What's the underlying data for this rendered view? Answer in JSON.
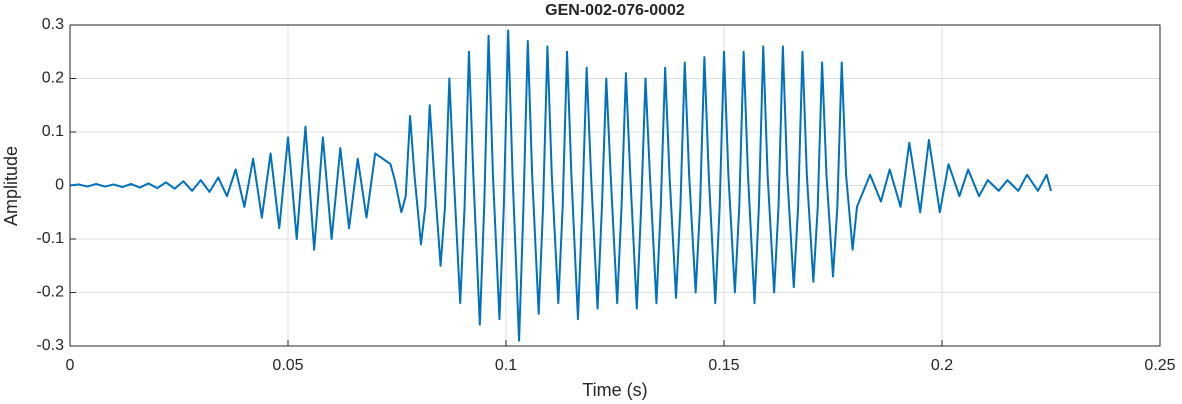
{
  "chart_data": {
    "type": "line",
    "title": "GEN-002-076-0002",
    "xlabel": "Time (s)",
    "ylabel": "Amplitude",
    "color": "#0072bd",
    "grid": true,
    "xlim": [
      0,
      0.25
    ],
    "xticks": [
      0,
      0.05,
      0.1,
      0.15,
      0.2,
      0.25
    ],
    "ylim": [
      -0.3,
      0.3
    ],
    "yticks": [
      -0.3,
      -0.2,
      -0.1,
      0,
      0.1,
      0.2,
      0.3
    ],
    "x": [
      0,
      0.002,
      0.004,
      0.006,
      0.008,
      0.01,
      0.012,
      0.014,
      0.016,
      0.018,
      0.02,
      0.022,
      0.024,
      0.026,
      0.028,
      0.03,
      0.032,
      0.034,
      0.036,
      0.038,
      0.04,
      0.042,
      0.044,
      0.046,
      0.048,
      0.05,
      0.052,
      0.054,
      0.056,
      0.058,
      0.06,
      0.062,
      0.064,
      0.066,
      0.068,
      0.07,
      0.0735,
      0.0745,
      0.076,
      0.077,
      0.078,
      0.079,
      0.0805,
      0.0815,
      0.0825,
      0.0835,
      0.085,
      0.086,
      0.087,
      0.088,
      0.0895,
      0.0905,
      0.0915,
      0.0925,
      0.094,
      0.095,
      0.096,
      0.097,
      0.0985,
      0.0995,
      0.1005,
      0.1015,
      0.103,
      0.104,
      0.105,
      0.106,
      0.1075,
      0.1085,
      0.1095,
      0.1105,
      0.112,
      0.113,
      0.114,
      0.115,
      0.1165,
      0.1175,
      0.1185,
      0.1195,
      0.121,
      0.122,
      0.123,
      0.124,
      0.1255,
      0.1265,
      0.1275,
      0.1285,
      0.13,
      0.131,
      0.132,
      0.133,
      0.1345,
      0.1355,
      0.1365,
      0.1375,
      0.139,
      0.14,
      0.141,
      0.142,
      0.1435,
      0.1445,
      0.1455,
      0.1465,
      0.148,
      0.149,
      0.15,
      0.151,
      0.1525,
      0.1535,
      0.1545,
      0.1555,
      0.157,
      0.158,
      0.159,
      0.16,
      0.1615,
      0.1625,
      0.1635,
      0.1645,
      0.166,
      0.167,
      0.168,
      0.169,
      0.1705,
      0.1715,
      0.1725,
      0.1735,
      0.175,
      0.176,
      0.177,
      0.178,
      0.1795,
      0.1805,
      0.181,
      0.1835,
      0.186,
      0.188,
      0.1905,
      0.1925,
      0.195,
      0.197,
      0.1995,
      0.2015,
      0.204,
      0.206,
      0.2085,
      0.2105,
      0.213,
      0.215,
      0.2175,
      0.2195,
      0.222,
      0.224,
      0.225
    ],
    "values": [
      0,
      0.002,
      -0.002,
      0.003,
      -0.002,
      0.002,
      -0.003,
      0.003,
      -0.004,
      0.004,
      -0.005,
      0.006,
      -0.006,
      0.008,
      -0.01,
      0.01,
      -0.012,
      0.015,
      -0.02,
      0.03,
      -0.04,
      0.05,
      -0.06,
      0.06,
      -0.08,
      0.09,
      -0.1,
      0.11,
      -0.12,
      0.09,
      -0.1,
      0.07,
      -0.08,
      0.05,
      -0.06,
      0.06,
      0.04,
      0.01,
      -0.05,
      -0.02,
      0.13,
      0.02,
      -0.11,
      -0.04,
      0.15,
      0.02,
      -0.15,
      -0.04,
      0.2,
      0.02,
      -0.22,
      -0.04,
      0.25,
      0.02,
      -0.26,
      -0.04,
      0.28,
      0.02,
      -0.25,
      -0.04,
      0.29,
      0.02,
      -0.29,
      -0.04,
      0.27,
      0.02,
      -0.24,
      -0.04,
      0.26,
      0.02,
      -0.22,
      -0.04,
      0.25,
      0.02,
      -0.25,
      -0.04,
      0.22,
      0.02,
      -0.23,
      -0.04,
      0.2,
      0.02,
      -0.22,
      -0.04,
      0.21,
      0.02,
      -0.23,
      -0.04,
      0.2,
      0.02,
      -0.22,
      -0.04,
      0.22,
      0.02,
      -0.21,
      -0.04,
      0.23,
      0.02,
      -0.2,
      -0.04,
      0.24,
      0.02,
      -0.22,
      -0.04,
      0.25,
      0.02,
      -0.2,
      -0.04,
      0.25,
      0.02,
      -0.22,
      -0.04,
      0.26,
      0.02,
      -0.2,
      -0.04,
      0.26,
      0.02,
      -0.19,
      -0.04,
      0.25,
      0.02,
      -0.18,
      -0.04,
      0.23,
      0.02,
      -0.17,
      -0.04,
      0.23,
      0.02,
      -0.12,
      -0.04,
      -0.03,
      0.02,
      -0.03,
      0.03,
      -0.04,
      0.08,
      -0.05,
      0.085,
      -0.05,
      0.04,
      -0.02,
      0.03,
      -0.02,
      0.01,
      -0.01,
      0.01,
      -0.01,
      0.02,
      -0.01,
      0.02,
      -0.01
    ]
  }
}
